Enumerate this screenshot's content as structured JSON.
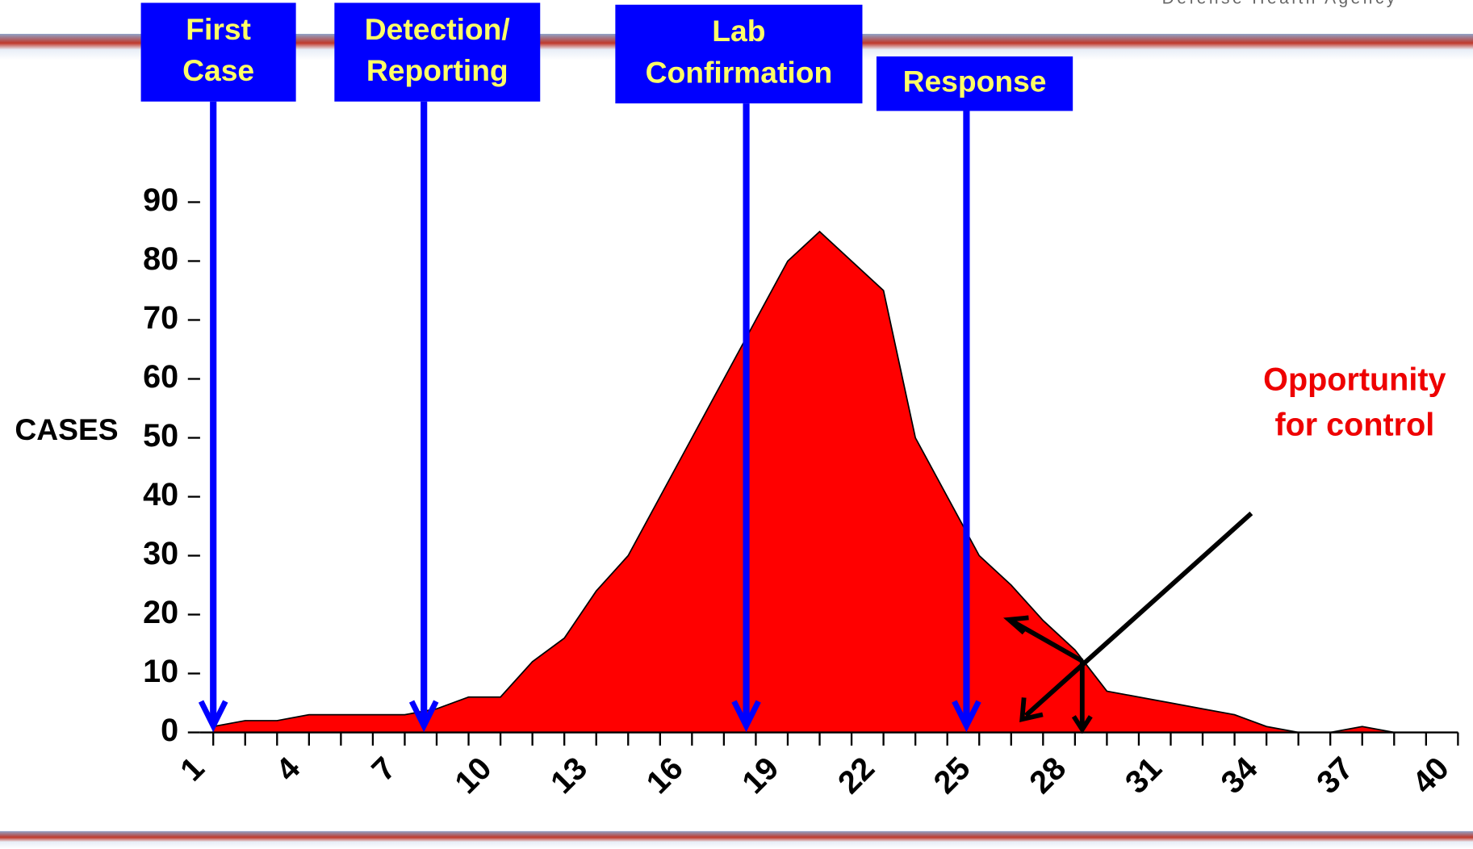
{
  "header": {
    "agency": "Defense Health Agency"
  },
  "chart_data": {
    "type": "area",
    "y_label": "CASES",
    "x": [
      1,
      2,
      3,
      4,
      5,
      6,
      7,
      8,
      9,
      10,
      11,
      12,
      13,
      14,
      15,
      16,
      17,
      18,
      19,
      20,
      21,
      22,
      23,
      24,
      25,
      26,
      27,
      28,
      29,
      30,
      31,
      32,
      33,
      34,
      35,
      36,
      37,
      38,
      39,
      40
    ],
    "series": [
      {
        "color": "#ff0000",
        "values": [
          1,
          2,
          2,
          3,
          3,
          3,
          3,
          4,
          6,
          6,
          12,
          16,
          24,
          30,
          40,
          50,
          60,
          70,
          80,
          85,
          80,
          75,
          50,
          40,
          30,
          25,
          19,
          14,
          7,
          6,
          5,
          4,
          3,
          1,
          0,
          0,
          1,
          0,
          0,
          0
        ]
      }
    ],
    "xlim": [
      1,
      40
    ],
    "xticks": [
      1,
      4,
      7,
      10,
      13,
      16,
      19,
      22,
      25,
      28,
      31,
      34,
      37,
      40
    ],
    "ylim": [
      0,
      90
    ],
    "yticks": [
      0,
      10,
      20,
      30,
      40,
      50,
      60,
      70,
      80,
      90
    ],
    "events": [
      {
        "label": [
          "First",
          "Case"
        ],
        "x": 1
      },
      {
        "label": [
          "Detection/",
          "Reporting"
        ],
        "x": 7.6
      },
      {
        "label": [
          "Lab",
          "Confirmation"
        ],
        "x": 17.7
      },
      {
        "label": [
          "Response"
        ],
        "x": 24.6
      }
    ],
    "annotation": [
      "Opportunity",
      "for control"
    ]
  }
}
